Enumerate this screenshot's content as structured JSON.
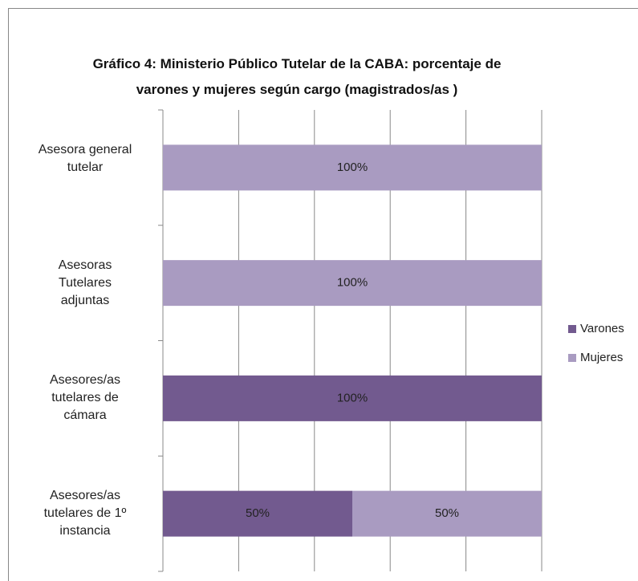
{
  "chart_data": {
    "type": "stacked_barh",
    "title": "Gráfico 4: Ministerio Público Tutelar de la CABA: porcentaje de\nvarones y mujeres según cargo (magistrados/as )",
    "categories": [
      "Asesora general\ntutelar",
      "Asesoras\nTutelares\nadjuntas",
      "Asesores/as\ntutelares de\ncámara",
      "Asesores/as\ntutelares de 1º\ninstancia"
    ],
    "series": [
      {
        "name": "Varones",
        "color": "#725a8f",
        "values": [
          0,
          0,
          100,
          50
        ],
        "value_labels": [
          null,
          null,
          "100%",
          "50%"
        ]
      },
      {
        "name": "Mujeres",
        "color": "#a99bc1",
        "values": [
          100,
          100,
          0,
          50
        ],
        "value_labels": [
          "100%",
          "100%",
          null,
          "50%"
        ]
      }
    ],
    "xlim": [
      0,
      100
    ],
    "xticks": [
      0,
      20,
      40,
      60,
      80,
      100
    ],
    "grid": true,
    "legend": "right"
  }
}
